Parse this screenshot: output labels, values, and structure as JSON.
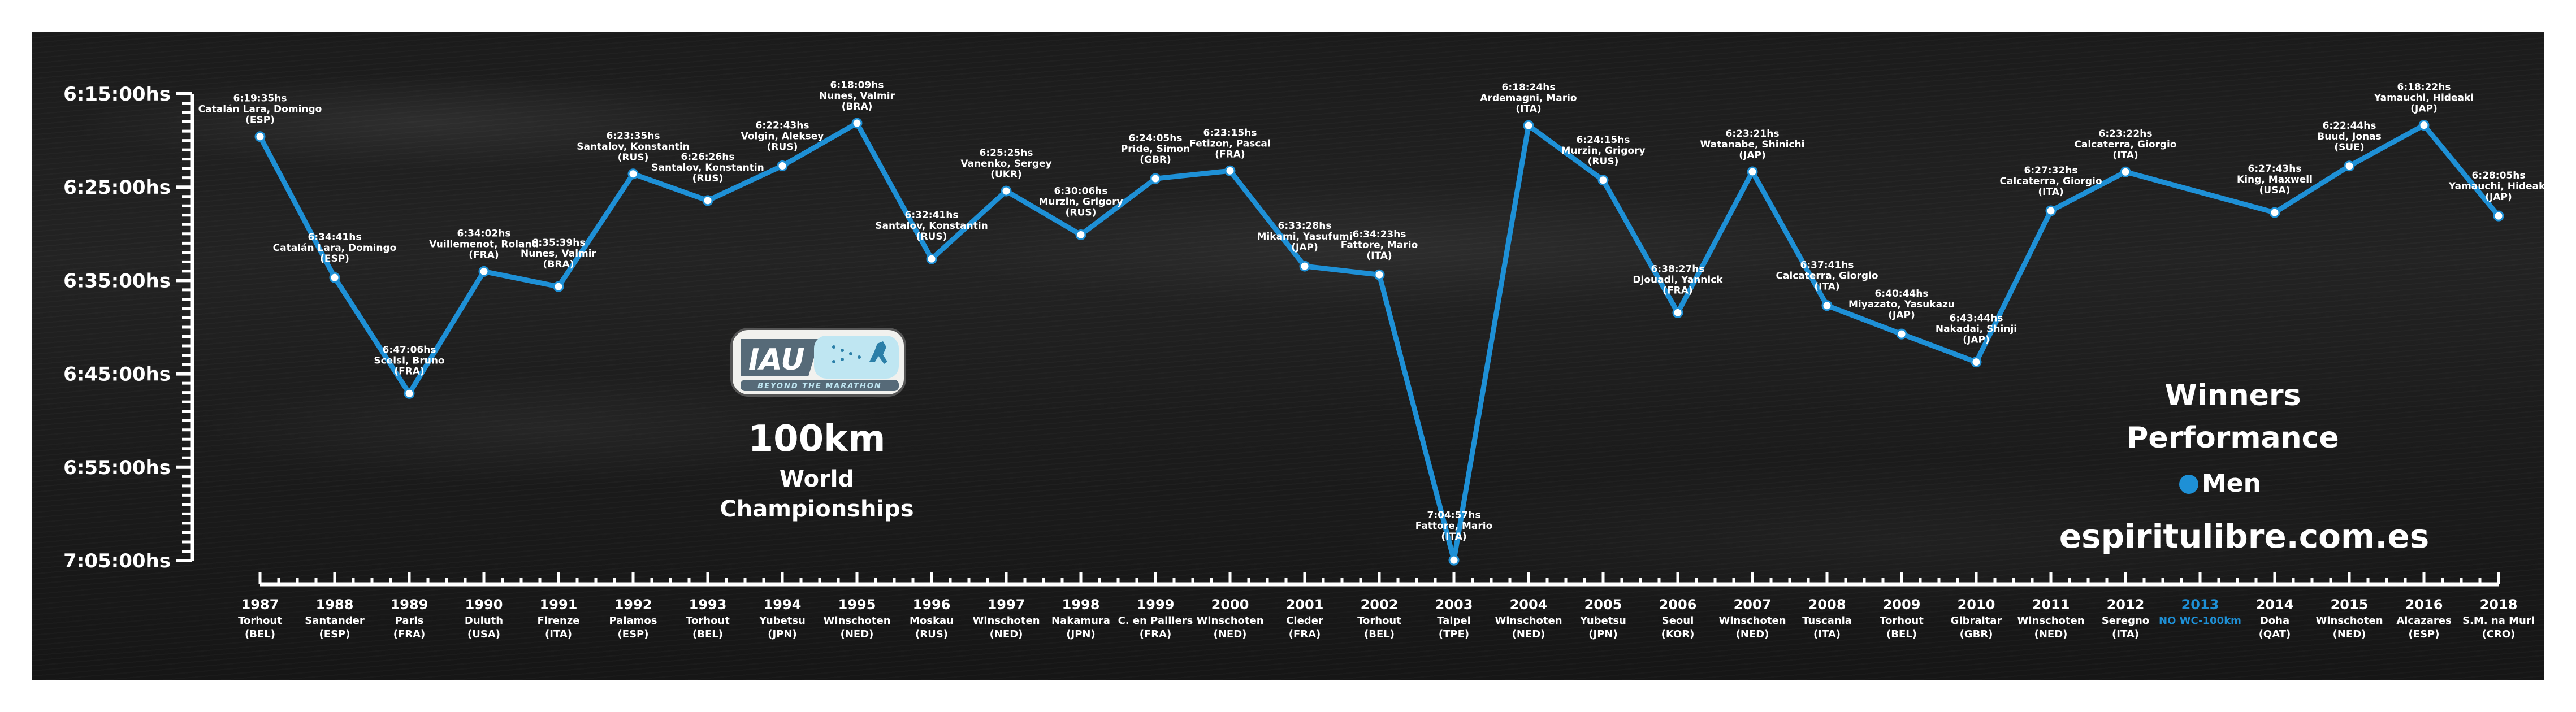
{
  "titles": {
    "event": "100km",
    "world": "World",
    "championships": "Championships",
    "winners": "Winners",
    "performance": "Performance",
    "website": "espiritulibre.com.es"
  },
  "badge": {
    "logo_text": "IAU",
    "tagline": "BEYOND THE MARATHON"
  },
  "legend": {
    "label": "Men",
    "color": "#1e90d6"
  },
  "chart_data": {
    "type": "line",
    "series": [
      {
        "name": "Men",
        "color": "#1e90d6"
      }
    ],
    "y_axis": {
      "ticks": [
        "6:15:00hs",
        "6:25:00hs",
        "6:35:00hs",
        "6:45:00hs",
        "6:55:00hs",
        "7:05:00hs"
      ],
      "tick_seconds": [
        22500,
        23100,
        23700,
        24300,
        24900,
        25500
      ],
      "ylim_seconds": [
        22500,
        25500
      ],
      "inverted": true
    },
    "points": [
      {
        "year": "1987",
        "venue": "Torhout",
        "country": "(BEL)",
        "time": "6:19:35hs",
        "seconds": 22775,
        "athlete": "Catalán Lara, Domingo",
        "nat": "(ESP)"
      },
      {
        "year": "1988",
        "venue": "Santander",
        "country": "(ESP)",
        "time": "6:34:41hs",
        "seconds": 23681,
        "athlete": "Catalán Lara, Domingo",
        "nat": "(ESP)"
      },
      {
        "year": "1989",
        "venue": "Paris",
        "country": "(FRA)",
        "time": "6:47:06hs",
        "seconds": 24426,
        "athlete": "Scelsi, Bruno",
        "nat": "(FRA)"
      },
      {
        "year": "1990",
        "venue": "Duluth",
        "country": "(USA)",
        "time": "6:34:02hs",
        "seconds": 23642,
        "athlete": "Vuillemenot, Roland",
        "nat": "(FRA)"
      },
      {
        "year": "1991",
        "venue": "Firenze",
        "country": "(ITA)",
        "time": "6:35:39hs",
        "seconds": 23739,
        "athlete": "Nunes, Valmir",
        "nat": "(BRA)"
      },
      {
        "year": "1992",
        "venue": "Palamos",
        "country": "(ESP)",
        "time": "6:23:35hs",
        "seconds": 23015,
        "athlete": "Santalov, Konstantin",
        "nat": "(RUS)"
      },
      {
        "year": "1993",
        "venue": "Torhout",
        "country": "(BEL)",
        "time": "6:26:26hs",
        "seconds": 23186,
        "athlete": "Santalov, Konstantin",
        "nat": "(RUS)"
      },
      {
        "year": "1994",
        "venue": "Yubetsu",
        "country": "(JPN)",
        "time": "6:22:43hs",
        "seconds": 22963,
        "athlete": "Volgin, Aleksey",
        "nat": "(RUS)"
      },
      {
        "year": "1995",
        "venue": "Winschoten",
        "country": "(NED)",
        "time": "6:18:09hs",
        "seconds": 22689,
        "athlete": "Nunes, Valmir",
        "nat": "(BRA)"
      },
      {
        "year": "1996",
        "venue": "Moskau",
        "country": "(RUS)",
        "time": "6:32:41hs",
        "seconds": 23561,
        "athlete": "Santalov, Konstantin",
        "nat": "(RUS)"
      },
      {
        "year": "1997",
        "venue": "Winschoten",
        "country": "(NED)",
        "time": "6:25:25hs",
        "seconds": 23125,
        "athlete": "Vanenko, Sergey",
        "nat": "(UKR)"
      },
      {
        "year": "1998",
        "venue": "Nakamura",
        "country": "(JPN)",
        "time": "6:30:06hs",
        "seconds": 23406,
        "athlete": "Murzin, Grigory",
        "nat": "(RUS)"
      },
      {
        "year": "1999",
        "venue": "C. en Paillers",
        "country": "(FRA)",
        "time": "6:24:05hs",
        "seconds": 23045,
        "athlete": "Pride, Simon",
        "nat": "(GBR)"
      },
      {
        "year": "2000",
        "venue": "Winschoten",
        "country": "(NED)",
        "time": "6:23:15hs",
        "seconds": 22995,
        "athlete": "Fetizon, Pascal",
        "nat": "(FRA)"
      },
      {
        "year": "2001",
        "venue": "Cleder",
        "country": "(FRA)",
        "time": "6:33:28hs",
        "seconds": 23608,
        "athlete": "Mikami, Yasufumi",
        "nat": "(JAP)"
      },
      {
        "year": "2002",
        "venue": "Torhout",
        "country": "(BEL)",
        "time": "6:34:23hs",
        "seconds": 23663,
        "athlete": "Fattore, Mario",
        "nat": "(ITA)"
      },
      {
        "year": "2003",
        "venue": "Taipei",
        "country": "(TPE)",
        "time": "7:04:57hs",
        "seconds": 25497,
        "athlete": "Fattore, Mario",
        "nat": "(ITA)"
      },
      {
        "year": "2004",
        "venue": "Winschoten",
        "country": "(NED)",
        "time": "6:18:24hs",
        "seconds": 22704,
        "athlete": "Ardemagni, Mario",
        "nat": "(ITA)"
      },
      {
        "year": "2005",
        "venue": "Yubetsu",
        "country": "(JPN)",
        "time": "6:24:15hs",
        "seconds": 23055,
        "athlete": "Murzin, Grigory",
        "nat": "(RUS)"
      },
      {
        "year": "2006",
        "venue": "Seoul",
        "country": "(KOR)",
        "time": "6:38:27hs",
        "seconds": 23907,
        "athlete": "Djouadi, Yannick",
        "nat": "(FRA)"
      },
      {
        "year": "2007",
        "venue": "Winschoten",
        "country": "(NED)",
        "time": "6:23:21hs",
        "seconds": 23001,
        "athlete": "Watanabe, Shinichi",
        "nat": "(JAP)"
      },
      {
        "year": "2008",
        "venue": "Tuscania",
        "country": "(ITA)",
        "time": "6:37:41hs",
        "seconds": 23861,
        "athlete": "Calcaterra, Giorgio",
        "nat": "(ITA)"
      },
      {
        "year": "2009",
        "venue": "Torhout",
        "country": "(BEL)",
        "time": "6:40:44hs",
        "seconds": 24044,
        "athlete": "Miyazato, Yasukazu",
        "nat": "(JAP)"
      },
      {
        "year": "2010",
        "venue": "Gibraltar",
        "country": "(GBR)",
        "time": "6:43:44hs",
        "seconds": 24224,
        "athlete": "Nakadai, Shinji",
        "nat": "(JAP)"
      },
      {
        "year": "2011",
        "venue": "Winschoten",
        "country": "(NED)",
        "time": "6:27:32hs",
        "seconds": 23252,
        "athlete": "Calcaterra, Giorgio",
        "nat": "(ITA)"
      },
      {
        "year": "2012",
        "venue": "Seregno",
        "country": "(ITA)",
        "time": "6:23:22hs",
        "seconds": 23002,
        "athlete": "Calcaterra, Giorgio",
        "nat": "(ITA)"
      },
      {
        "year": "2013",
        "venue": "NO WC-100km",
        "country": "",
        "time": null,
        "seconds": null,
        "athlete": "",
        "nat": ""
      },
      {
        "year": "2014",
        "venue": "Doha",
        "country": "(QAT)",
        "time": "6:27:43hs",
        "seconds": 23263,
        "athlete": "King, Maxwell",
        "nat": "(USA)"
      },
      {
        "year": "2015",
        "venue": "Winschoten",
        "country": "(NED)",
        "time": "6:22:44hs",
        "seconds": 22964,
        "athlete": "Buud, Jonas",
        "nat": "(SUE)"
      },
      {
        "year": "2016",
        "venue": "Alcazares",
        "country": "(ESP)",
        "time": "6:18:22hs",
        "seconds": 22702,
        "athlete": "Yamauchi, Hideaki",
        "nat": "(JAP)"
      },
      {
        "year": "2018",
        "venue": "S.M. na Muri",
        "country": "(CRO)",
        "time": "6:28:05hs",
        "seconds": 23285,
        "athlete": "Yamauchi, Hideaki",
        "nat": "(JAP)"
      }
    ]
  }
}
